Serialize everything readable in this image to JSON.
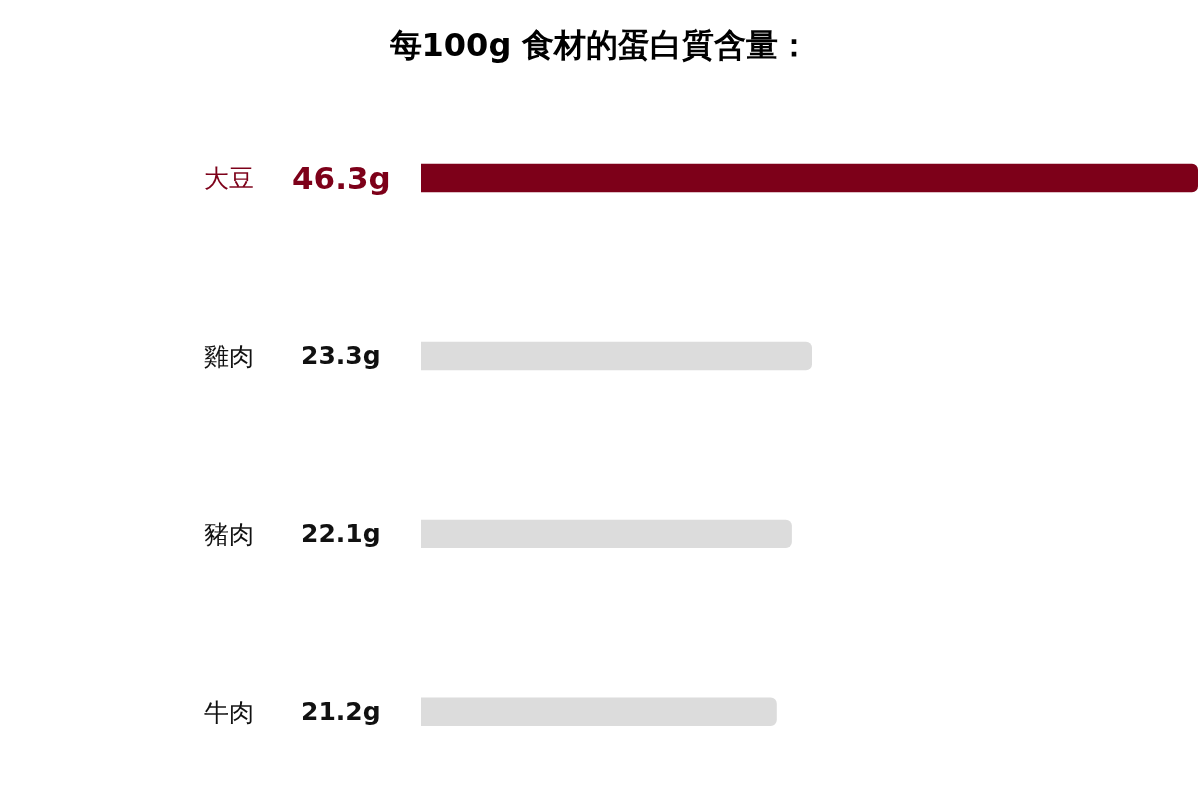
{
  "chart_data": {
    "type": "bar",
    "orientation": "horizontal",
    "title": "每100g 食材的蛋白質含量：",
    "categories": [
      "大豆",
      "雞肉",
      "豬肉",
      "牛肉"
    ],
    "values": [
      46.3,
      23.3,
      22.1,
      21.2
    ],
    "colors": [
      "#7d0019",
      "#dcdcdc",
      "#dcdcdc",
      "#dcdcdc"
    ],
    "value_labels": [
      "46.3g",
      "23.3g",
      "22.1g",
      "21.2g"
    ]
  }
}
